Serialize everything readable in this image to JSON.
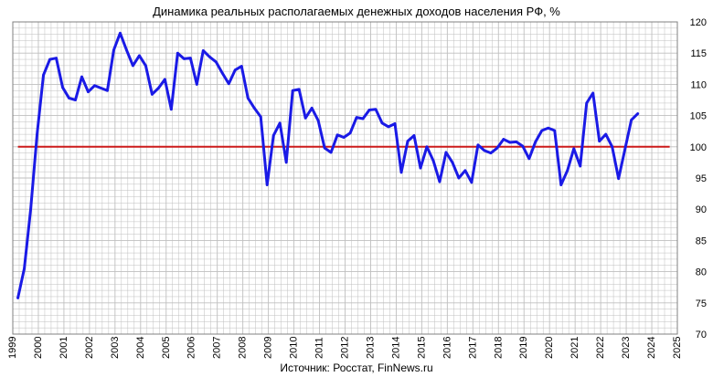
{
  "chart_data": {
    "type": "line",
    "title": "Динамика реальных располагаемых денежных доходов населения РФ, %",
    "source": "Источник: Росстат, FinNews.ru",
    "xlabel": "",
    "ylabel": "",
    "xlim": [
      1999,
      2025
    ],
    "ylim": [
      70,
      120
    ],
    "x_ticks": [
      "1999",
      "2000",
      "2001",
      "2002",
      "2003",
      "2004",
      "2005",
      "2006",
      "2007",
      "2008",
      "2009",
      "2010",
      "2011",
      "2012",
      "2013",
      "2014",
      "2015",
      "2016",
      "2017",
      "2018",
      "2019",
      "2020",
      "2021",
      "2022",
      "2023",
      "2024",
      "2025"
    ],
    "y_ticks": [
      "70",
      "75",
      "80",
      "85",
      "90",
      "95",
      "100",
      "105",
      "110",
      "115",
      "120"
    ],
    "y_axis_side": "right",
    "grid": true,
    "legend": "none",
    "colors": {
      "series": "#1a1ae6",
      "reference": "#cc1a1a",
      "grid": "#bfbfbf",
      "frame": "#808080"
    },
    "reference_line": {
      "y": 100
    },
    "series": [
      {
        "values": [
          [
            1999.2,
            75.8
          ],
          [
            1999.45,
            80.5
          ],
          [
            1999.7,
            90.0
          ],
          [
            1999.95,
            102.0
          ],
          [
            2000.2,
            111.5
          ],
          [
            2000.45,
            114.0
          ],
          [
            2000.7,
            114.2
          ],
          [
            2000.95,
            109.5
          ],
          [
            2001.2,
            107.8
          ],
          [
            2001.45,
            107.5
          ],
          [
            2001.7,
            111.2
          ],
          [
            2001.95,
            108.8
          ],
          [
            2002.2,
            109.8
          ],
          [
            2002.45,
            109.4
          ],
          [
            2002.7,
            109.0
          ],
          [
            2002.95,
            115.5
          ],
          [
            2003.2,
            118.2
          ],
          [
            2003.45,
            115.5
          ],
          [
            2003.7,
            113.0
          ],
          [
            2003.95,
            114.6
          ],
          [
            2004.2,
            113.0
          ],
          [
            2004.45,
            108.4
          ],
          [
            2004.7,
            109.4
          ],
          [
            2004.95,
            110.8
          ],
          [
            2005.2,
            106.0
          ],
          [
            2005.45,
            115.0
          ],
          [
            2005.7,
            114.1
          ],
          [
            2005.95,
            114.2
          ],
          [
            2006.2,
            110.0
          ],
          [
            2006.45,
            115.4
          ],
          [
            2006.7,
            114.4
          ],
          [
            2006.95,
            113.6
          ],
          [
            2007.2,
            111.8
          ],
          [
            2007.45,
            110.1
          ],
          [
            2007.7,
            112.3
          ],
          [
            2007.95,
            112.9
          ],
          [
            2008.2,
            107.8
          ],
          [
            2008.45,
            106.2
          ],
          [
            2008.7,
            104.8
          ],
          [
            2008.95,
            93.9
          ],
          [
            2009.2,
            101.8
          ],
          [
            2009.45,
            103.8
          ],
          [
            2009.7,
            97.5
          ],
          [
            2009.95,
            109.0
          ],
          [
            2010.2,
            109.2
          ],
          [
            2010.45,
            104.6
          ],
          [
            2010.7,
            106.2
          ],
          [
            2010.95,
            104.2
          ],
          [
            2011.2,
            99.8
          ],
          [
            2011.45,
            99.1
          ],
          [
            2011.7,
            101.9
          ],
          [
            2011.95,
            101.5
          ],
          [
            2012.2,
            102.2
          ],
          [
            2012.45,
            104.7
          ],
          [
            2012.7,
            104.5
          ],
          [
            2012.95,
            105.9
          ],
          [
            2013.2,
            106.0
          ],
          [
            2013.45,
            103.8
          ],
          [
            2013.7,
            103.2
          ],
          [
            2013.95,
            103.7
          ],
          [
            2014.2,
            95.9
          ],
          [
            2014.45,
            100.9
          ],
          [
            2014.7,
            101.8
          ],
          [
            2014.95,
            96.6
          ],
          [
            2015.2,
            100.0
          ],
          [
            2015.45,
            97.8
          ],
          [
            2015.7,
            94.4
          ],
          [
            2015.95,
            99.1
          ],
          [
            2016.2,
            97.5
          ],
          [
            2016.45,
            95.0
          ],
          [
            2016.7,
            96.2
          ],
          [
            2016.95,
            94.3
          ],
          [
            2017.2,
            100.3
          ],
          [
            2017.45,
            99.4
          ],
          [
            2017.7,
            99.0
          ],
          [
            2017.95,
            99.8
          ],
          [
            2018.2,
            101.2
          ],
          [
            2018.45,
            100.7
          ],
          [
            2018.7,
            100.8
          ],
          [
            2018.95,
            100.1
          ],
          [
            2019.2,
            98.1
          ],
          [
            2019.45,
            100.8
          ],
          [
            2019.7,
            102.6
          ],
          [
            2019.95,
            103.0
          ],
          [
            2020.2,
            102.6
          ],
          [
            2020.45,
            93.9
          ],
          [
            2020.7,
            96.2
          ],
          [
            2020.95,
            99.7
          ],
          [
            2021.2,
            96.9
          ],
          [
            2021.45,
            107.0
          ],
          [
            2021.7,
            108.6
          ],
          [
            2021.95,
            100.9
          ],
          [
            2022.2,
            102.0
          ],
          [
            2022.45,
            100.0
          ],
          [
            2022.7,
            94.9
          ],
          [
            2022.95,
            99.6
          ],
          [
            2023.2,
            104.3
          ],
          [
            2023.45,
            105.3
          ]
        ]
      }
    ]
  }
}
